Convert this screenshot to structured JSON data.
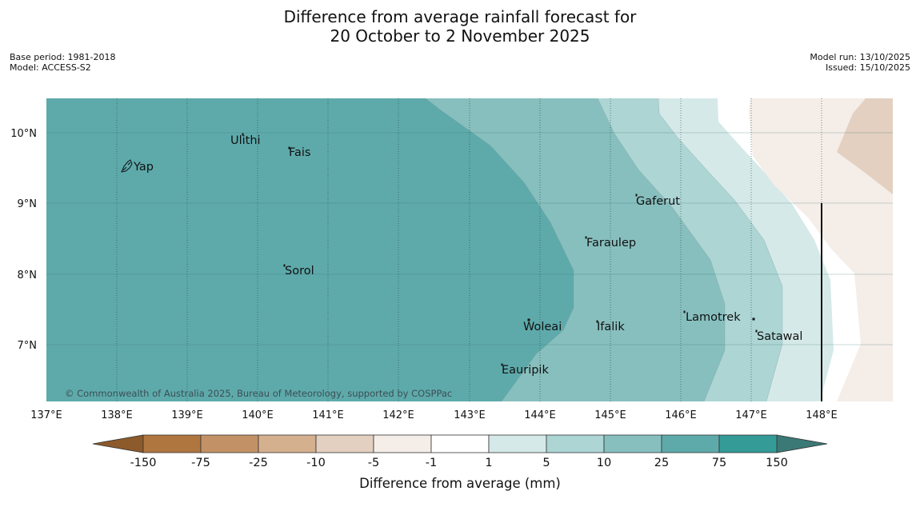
{
  "title": {
    "line1": "Difference from average rainfall forecast for",
    "line2": "20 October to 2 November 2025"
  },
  "meta_left": {
    "base_period": "Base period: 1981-2018",
    "model": "Model: ACCESS-S2"
  },
  "meta_right": {
    "model_run": "Model run: 13/10/2025",
    "issued": "Issued: 15/10/2025"
  },
  "map": {
    "lon_labels": [
      "137°E",
      "138°E",
      "139°E",
      "140°E",
      "141°E",
      "142°E",
      "143°E",
      "144°E",
      "145°E",
      "146°E",
      "147°E",
      "148°E"
    ],
    "lat_labels": [
      "10°N",
      "9°N",
      "8°N",
      "7°N"
    ],
    "places": [
      "Ulithi",
      "Fais",
      "Yap",
      "Gaferut",
      "Faraulep",
      "Sorol",
      "Lamotrek",
      "Woleai",
      "Ifalik",
      "Satawal",
      "Eauripik"
    ],
    "copyright": "© Commonwealth of Australia 2025, Bureau of Meteorology, supported by COSPPac"
  },
  "colorbar": {
    "ticks": [
      "-150",
      "-75",
      "-25",
      "-10",
      "-5",
      "-1",
      "1",
      "5",
      "10",
      "25",
      "75",
      "150"
    ],
    "colors": [
      "#b07640",
      "#c29266",
      "#d5b08f",
      "#e3d0c0",
      "#f4ede8",
      "#ffffff",
      "#d6e9e9",
      "#acd5d4",
      "#87bfbe",
      "#5eaaab",
      "#349b97"
    ],
    "low_extend_color": "#8d5a2b",
    "high_extend_color": "#3b7976",
    "label": "Difference from average (mm)"
  }
}
